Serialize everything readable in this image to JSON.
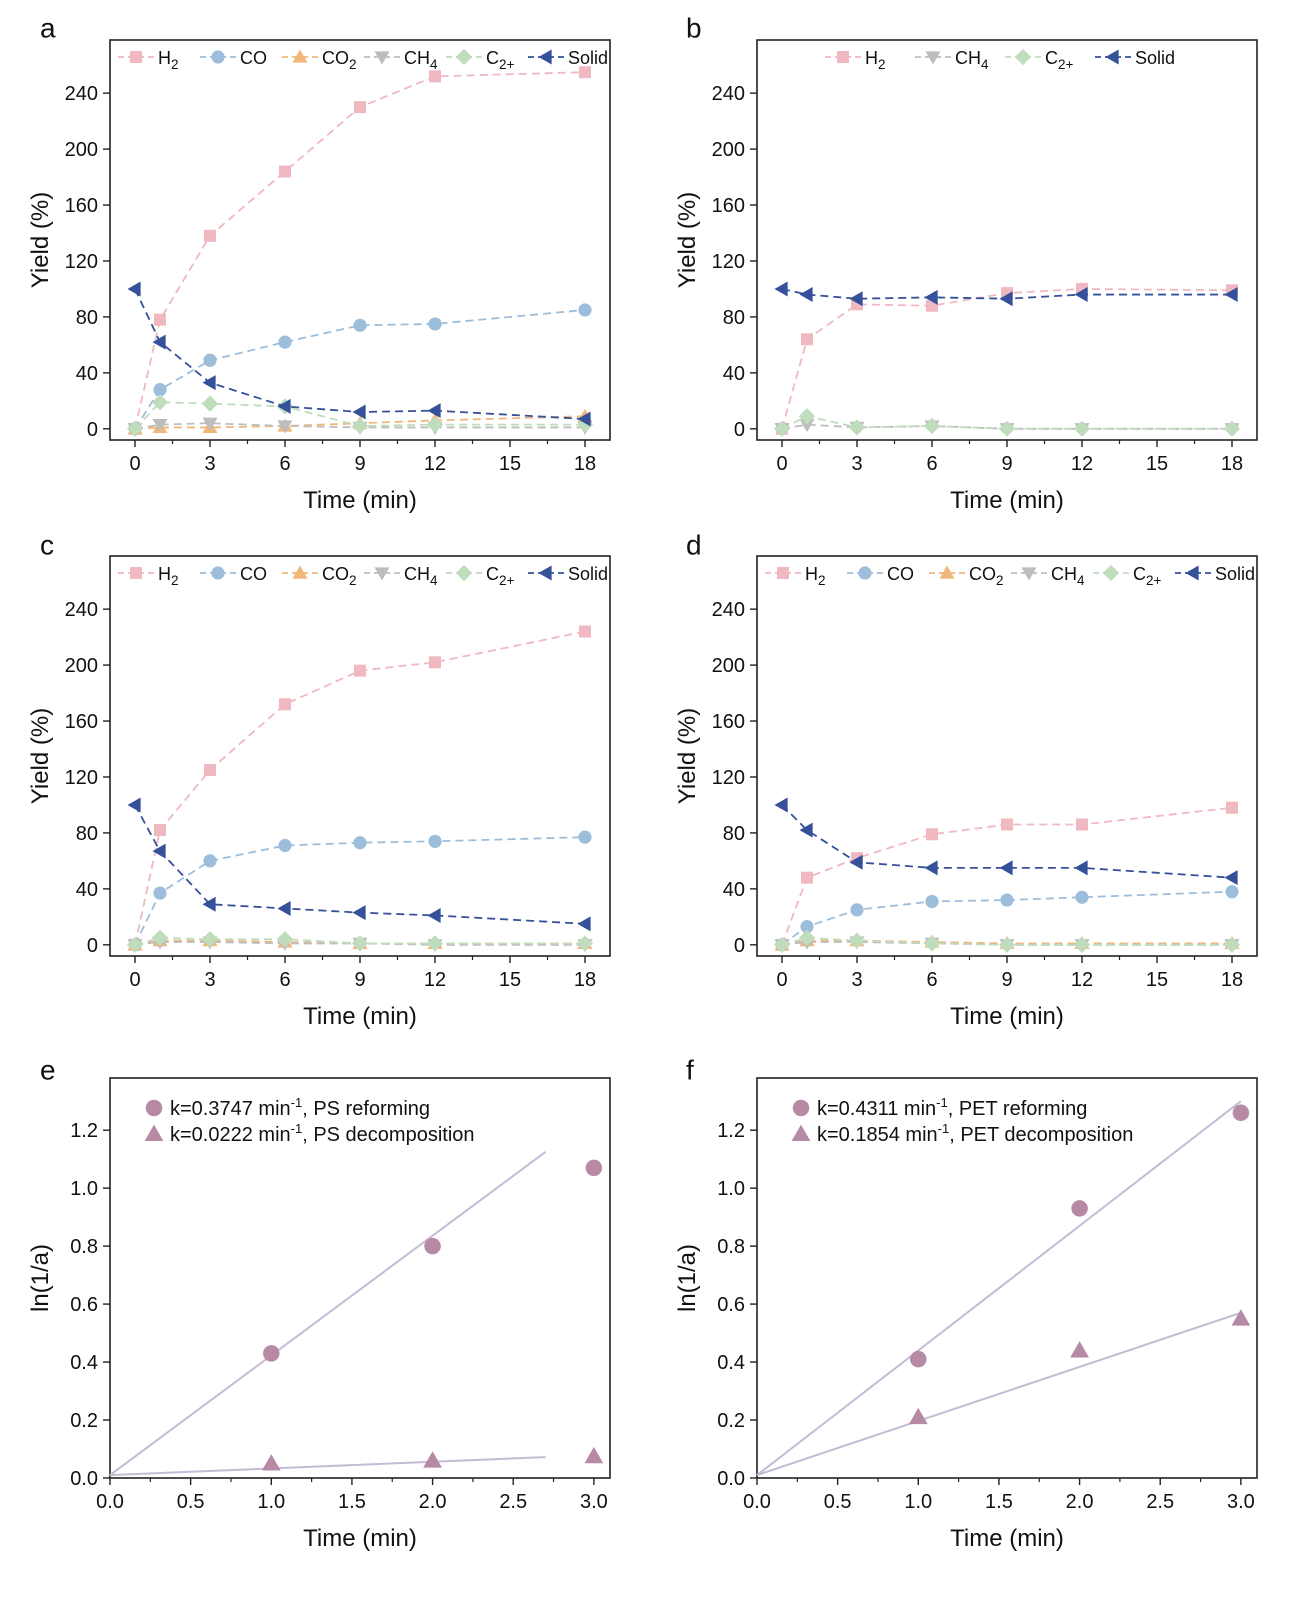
{
  "colors": {
    "H2": "#f0b8c0",
    "CO": "#9dbedb",
    "CO2": "#f0b67a",
    "CH4": "#bdbdbd",
    "C2plus": "#bfdcbc",
    "Solid": "#34519a",
    "kinetic_marker": "#b68aa4",
    "fit_line": "#c2bcd4"
  },
  "chart_data": [
    {
      "panel": "a",
      "type": "line",
      "xlabel": "Time (min)",
      "ylabel": "Yield (%)",
      "xlim": [
        -1,
        19
      ],
      "ylim": [
        -8,
        278
      ],
      "xticks": [
        0,
        3,
        6,
        9,
        12,
        15,
        18
      ],
      "yticks": [
        0,
        40,
        80,
        120,
        160,
        200,
        240
      ],
      "legend_position": "top",
      "x": [
        0,
        1,
        3,
        6,
        9,
        12,
        18
      ],
      "series": [
        {
          "key": "H2",
          "name": "H",
          "sub": "2",
          "marker": "square",
          "values": [
            0,
            78,
            138,
            184,
            230,
            252,
            255
          ]
        },
        {
          "key": "CO",
          "name": "CO",
          "sub": "",
          "marker": "circle",
          "values": [
            0,
            28,
            49,
            62,
            74,
            75,
            85
          ]
        },
        {
          "key": "CO2",
          "name": "CO",
          "sub": "2",
          "marker": "triangle-up",
          "values": [
            0,
            1,
            1,
            2,
            4,
            6,
            9
          ]
        },
        {
          "key": "CH4",
          "name": "CH",
          "sub": "4",
          "marker": "triangle-down",
          "values": [
            0,
            3,
            4,
            2,
            1,
            1,
            1
          ]
        },
        {
          "key": "C2plus",
          "name": "C",
          "sub": "2+",
          "marker": "diamond",
          "values": [
            0,
            19,
            18,
            16,
            2,
            3,
            3
          ]
        },
        {
          "key": "Solid",
          "name": "Solid",
          "sub": "",
          "marker": "triangle-left",
          "values": [
            100,
            62,
            33,
            16,
            12,
            13,
            7
          ]
        }
      ]
    },
    {
      "panel": "b",
      "type": "line",
      "xlabel": "Time (min)",
      "ylabel": "Yield (%)",
      "xlim": [
        -1,
        19
      ],
      "ylim": [
        -8,
        278
      ],
      "xticks": [
        0,
        3,
        6,
        9,
        12,
        15,
        18
      ],
      "yticks": [
        0,
        40,
        80,
        120,
        160,
        200,
        240
      ],
      "legend_position": "top",
      "x": [
        0,
        1,
        3,
        6,
        9,
        12,
        18
      ],
      "series": [
        {
          "key": "H2",
          "name": "H",
          "sub": "2",
          "marker": "square",
          "values": [
            0,
            64,
            89,
            88,
            97,
            100,
            99
          ]
        },
        {
          "key": "CH4",
          "name": "CH",
          "sub": "4",
          "marker": "triangle-down",
          "values": [
            0,
            3,
            1,
            2,
            0,
            0,
            0
          ]
        },
        {
          "key": "C2plus",
          "name": "C",
          "sub": "2+",
          "marker": "diamond",
          "values": [
            0,
            9,
            1,
            2,
            0,
            0,
            0
          ]
        },
        {
          "key": "Solid",
          "name": "Solid",
          "sub": "",
          "marker": "triangle-left",
          "values": [
            100,
            96,
            93,
            94,
            93,
            96,
            96
          ]
        }
      ]
    },
    {
      "panel": "c",
      "type": "line",
      "xlabel": "Time (min)",
      "ylabel": "Yield (%)",
      "xlim": [
        -1,
        19
      ],
      "ylim": [
        -8,
        278
      ],
      "xticks": [
        0,
        3,
        6,
        9,
        12,
        15,
        18
      ],
      "yticks": [
        0,
        40,
        80,
        120,
        160,
        200,
        240
      ],
      "legend_position": "top",
      "x": [
        0,
        1,
        3,
        6,
        9,
        12,
        18
      ],
      "series": [
        {
          "key": "H2",
          "name": "H",
          "sub": "2",
          "marker": "square",
          "values": [
            0,
            82,
            125,
            172,
            196,
            202,
            224
          ]
        },
        {
          "key": "CO",
          "name": "CO",
          "sub": "",
          "marker": "circle",
          "values": [
            0,
            37,
            60,
            71,
            73,
            74,
            77
          ]
        },
        {
          "key": "CO2",
          "name": "CO",
          "sub": "2",
          "marker": "triangle-up",
          "values": [
            0,
            3,
            3,
            2,
            1,
            1,
            1
          ]
        },
        {
          "key": "CH4",
          "name": "CH",
          "sub": "4",
          "marker": "triangle-down",
          "values": [
            0,
            2,
            2,
            1,
            1,
            0,
            0
          ]
        },
        {
          "key": "C2plus",
          "name": "C",
          "sub": "2+",
          "marker": "diamond",
          "values": [
            0,
            5,
            4,
            4,
            1,
            1,
            1
          ]
        },
        {
          "key": "Solid",
          "name": "Solid",
          "sub": "",
          "marker": "triangle-left",
          "values": [
            100,
            67,
            29,
            26,
            23,
            21,
            15
          ]
        }
      ]
    },
    {
      "panel": "d",
      "type": "line",
      "xlabel": "Time (min)",
      "ylabel": "Yield (%)",
      "xlim": [
        -1,
        19
      ],
      "ylim": [
        -8,
        278
      ],
      "xticks": [
        0,
        3,
        6,
        9,
        12,
        15,
        18
      ],
      "yticks": [
        0,
        40,
        80,
        120,
        160,
        200,
        240
      ],
      "legend_position": "top",
      "x": [
        0,
        1,
        3,
        6,
        9,
        12,
        18
      ],
      "series": [
        {
          "key": "H2",
          "name": "H",
          "sub": "2",
          "marker": "square",
          "values": [
            0,
            48,
            62,
            79,
            86,
            86,
            98
          ]
        },
        {
          "key": "CO",
          "name": "CO",
          "sub": "",
          "marker": "circle",
          "values": [
            0,
            13,
            25,
            31,
            32,
            34,
            38
          ]
        },
        {
          "key": "CO2",
          "name": "CO",
          "sub": "2",
          "marker": "triangle-up",
          "values": [
            0,
            3,
            3,
            2,
            1,
            1,
            1
          ]
        },
        {
          "key": "CH4",
          "name": "CH",
          "sub": "4",
          "marker": "triangle-down",
          "values": [
            0,
            2,
            2,
            1,
            0,
            0,
            0
          ]
        },
        {
          "key": "C2plus",
          "name": "C",
          "sub": "2+",
          "marker": "diamond",
          "values": [
            0,
            5,
            3,
            1,
            0,
            0,
            0
          ]
        },
        {
          "key": "Solid",
          "name": "Solid",
          "sub": "",
          "marker": "triangle-left",
          "values": [
            100,
            82,
            59,
            55,
            55,
            55,
            48
          ]
        }
      ]
    },
    {
      "panel": "e",
      "type": "scatter",
      "xlabel": "Time (min)",
      "ylabel": "ln(1/a)",
      "xlim": [
        0,
        3.1
      ],
      "ylim": [
        0,
        1.38
      ],
      "xticks": [
        0.0,
        0.5,
        1.0,
        1.5,
        2.0,
        2.5,
        3.0
      ],
      "yticks": [
        0.0,
        0.2,
        0.4,
        0.6,
        0.8,
        1.0,
        1.2
      ],
      "legend_position": "top-left",
      "series": [
        {
          "marker": "circle",
          "k_text": "k=0.3747 min",
          "sup": "-1",
          "label": ",  PS reforming",
          "x": [
            1,
            2,
            3
          ],
          "values": [
            0.43,
            0.8,
            1.07
          ],
          "fit": [
            [
              0,
              0.01
            ],
            [
              2.7,
              1.125
            ]
          ]
        },
        {
          "marker": "triangle-up",
          "k_text": "k=0.0222 min",
          "sup": "-1",
          "label": ",  PS decomposition",
          "x": [
            1,
            2,
            3
          ],
          "values": [
            0.05,
            0.06,
            0.075
          ],
          "fit": [
            [
              0,
              0.01
            ],
            [
              2.7,
              0.072
            ]
          ]
        }
      ]
    },
    {
      "panel": "f",
      "type": "scatter",
      "xlabel": "Time (min)",
      "ylabel": "ln(1/a)",
      "xlim": [
        0,
        3.1
      ],
      "ylim": [
        0,
        1.38
      ],
      "xticks": [
        0.0,
        0.5,
        1.0,
        1.5,
        2.0,
        2.5,
        3.0
      ],
      "yticks": [
        0.0,
        0.2,
        0.4,
        0.6,
        0.8,
        1.0,
        1.2
      ],
      "legend_position": "top-left",
      "series": [
        {
          "marker": "circle",
          "k_text": "k=0.4311 min",
          "sup": "-1",
          "label": ",  PET reforming",
          "x": [
            1,
            2,
            3
          ],
          "values": [
            0.41,
            0.93,
            1.26
          ],
          "fit": [
            [
              0,
              0.01
            ],
            [
              3.0,
              1.3
            ]
          ]
        },
        {
          "marker": "triangle-up",
          "k_text": "k=0.1854 min",
          "sup": "-1",
          "label": ",  PET decomposition",
          "x": [
            1,
            2,
            3
          ],
          "values": [
            0.21,
            0.44,
            0.55
          ],
          "fit": [
            [
              0,
              0.01
            ],
            [
              3.0,
              0.57
            ]
          ]
        }
      ]
    }
  ]
}
